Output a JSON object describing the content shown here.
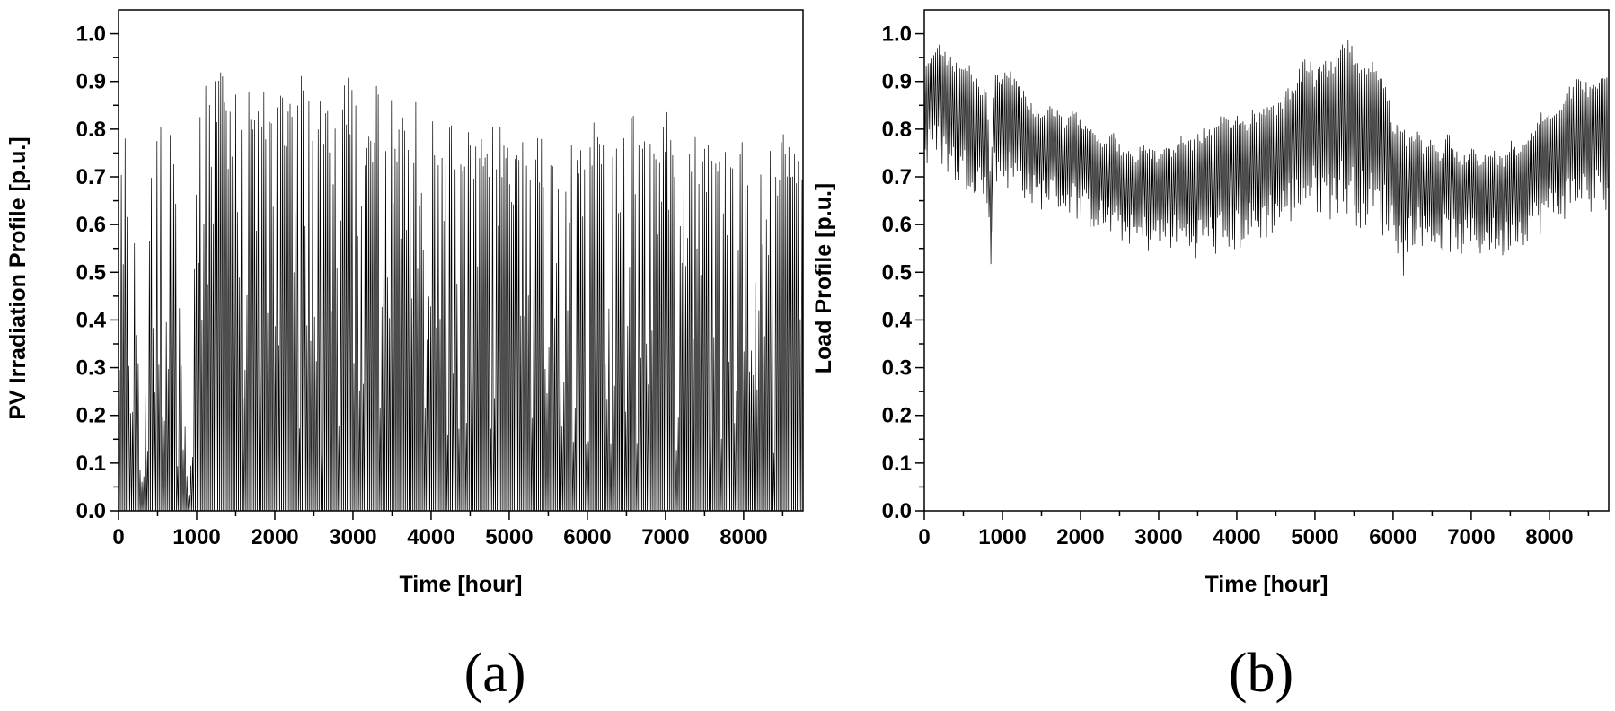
{
  "chart_data": [
    {
      "type": "line",
      "panel_label": "(a)",
      "xlabel": "Time [hour]",
      "ylabel": "PV Irradiation Profile [p.u.]",
      "xlim": [
        0,
        8760
      ],
      "ylim": [
        0,
        1.05
      ],
      "xticks": [
        0,
        1000,
        2000,
        3000,
        4000,
        5000,
        6000,
        7000,
        8000
      ],
      "yticks": [
        0.0,
        0.1,
        0.2,
        0.3,
        0.4,
        0.5,
        0.6,
        0.7,
        0.8,
        0.9,
        1.0
      ],
      "grid": false,
      "series_description": "hourly PV irradiation over one year; zero each night, daily peak envelope shown as points",
      "series": [
        {
          "x": [
            0,
            100,
            200,
            300,
            400,
            500,
            600,
            700,
            800,
            900,
            1000,
            1100,
            1200,
            1300,
            1400,
            1500,
            1600,
            1700,
            1800,
            1900,
            2000,
            2100,
            2200,
            2300,
            2400,
            2500,
            2600,
            2700,
            2800,
            2900,
            3000,
            3100,
            3200,
            3300,
            3400,
            3500,
            3600,
            3700,
            3800,
            3900,
            4000,
            4100,
            4200,
            4300,
            4400,
            4500,
            4600,
            4700,
            4800,
            4900,
            5000,
            5100,
            5200,
            5300,
            5400,
            5500,
            5600,
            5700,
            5800,
            5900,
            6000,
            6100,
            6200,
            6300,
            6400,
            6500,
            6600,
            6700,
            6800,
            6900,
            7000,
            7100,
            7200,
            7300,
            7400,
            7500,
            7600,
            7700,
            7800,
            7900,
            8000,
            8100,
            8200,
            8300,
            8400,
            8500,
            8600,
            8700
          ],
          "values": [
            0.78,
            0.8,
            0.56,
            0.0,
            0.75,
            0.8,
            0.88,
            0.85,
            0.3,
            0.0,
            0.85,
            0.92,
            0.9,
            0.94,
            0.93,
            0.94,
            0.96,
            0.89,
            0.85,
            0.94,
            0.93,
            0.86,
            0.88,
            1.0,
            0.95,
            0.9,
            0.85,
            0.84,
            0.82,
            0.94,
            0.88,
            0.83,
            0.85,
            0.93,
            0.87,
            0.86,
            0.87,
            0.85,
            0.86,
            0.86,
            0.86,
            0.84,
            0.82,
            0.83,
            0.81,
            0.8,
            0.8,
            0.82,
            0.81,
            0.81,
            0.8,
            0.8,
            0.79,
            0.8,
            0.8,
            0.79,
            0.8,
            0.78,
            0.8,
            0.82,
            0.86,
            0.8,
            0.79,
            0.83,
            0.8,
            0.84,
            0.84,
            0.87,
            0.81,
            0.84,
            0.84,
            0.8,
            0.81,
            0.83,
            0.78,
            0.8,
            0.78,
            0.79,
            0.8,
            0.77,
            0.78,
            0.79,
            0.83,
            0.77,
            0.76,
            0.81,
            0.79,
            0.78
          ]
        }
      ]
    },
    {
      "type": "line",
      "panel_label": "(b)",
      "xlabel": "Time [hour]",
      "ylabel": "Load Profile [p.u.]",
      "xlim": [
        0,
        8760
      ],
      "ylim": [
        0,
        1.05
      ],
      "xticks": [
        0,
        1000,
        2000,
        3000,
        4000,
        5000,
        6000,
        7000,
        8000
      ],
      "yticks": [
        0.0,
        0.1,
        0.2,
        0.3,
        0.4,
        0.5,
        0.6,
        0.7,
        0.8,
        0.9,
        1.0
      ],
      "grid": false,
      "series_description": "hourly load over one year, upper and lower envelopes of the daily oscillation",
      "series": [
        {
          "x": [
            0,
            100,
            200,
            300,
            400,
            500,
            600,
            700,
            800,
            850,
            900,
            1000,
            1100,
            1200,
            1300,
            1400,
            1500,
            1600,
            1700,
            1800,
            1900,
            2000,
            2100,
            2200,
            2300,
            2400,
            2500,
            2600,
            2700,
            2800,
            2900,
            3000,
            3100,
            3200,
            3300,
            3400,
            3500,
            3600,
            3700,
            3800,
            3900,
            4000,
            4100,
            4200,
            4300,
            4400,
            4500,
            4600,
            4700,
            4800,
            4900,
            5000,
            5100,
            5200,
            5300,
            5400,
            5500,
            5600,
            5700,
            5800,
            5900,
            6000,
            6100,
            6150,
            6200,
            6300,
            6400,
            6500,
            6600,
            6700,
            6800,
            6900,
            7000,
            7100,
            7200,
            7300,
            7400,
            7500,
            7600,
            7700,
            7800,
            7900,
            8000,
            8100,
            8200,
            8300,
            8400,
            8500,
            8600,
            8700
          ],
          "upper": [
            0.96,
            0.95,
            0.98,
            0.96,
            0.94,
            0.95,
            0.93,
            0.9,
            0.88,
            0.7,
            0.93,
            0.92,
            0.93,
            0.9,
            0.88,
            0.85,
            0.84,
            0.85,
            0.84,
            0.82,
            0.84,
            0.83,
            0.82,
            0.8,
            0.78,
            0.8,
            0.77,
            0.76,
            0.74,
            0.78,
            0.76,
            0.75,
            0.78,
            0.76,
            0.8,
            0.78,
            0.79,
            0.81,
            0.8,
            0.83,
            0.82,
            0.84,
            0.82,
            0.85,
            0.84,
            0.87,
            0.86,
            0.88,
            0.9,
            0.93,
            0.96,
            0.92,
            0.94,
            0.95,
            0.97,
            1.0,
            0.97,
            0.95,
            0.96,
            0.93,
            0.92,
            0.82,
            0.8,
            0.8,
            0.78,
            0.8,
            0.77,
            0.78,
            0.75,
            0.8,
            0.76,
            0.75,
            0.77,
            0.74,
            0.75,
            0.76,
            0.74,
            0.78,
            0.77,
            0.79,
            0.81,
            0.84,
            0.84,
            0.86,
            0.88,
            0.9,
            0.91,
            0.9,
            0.92,
            0.93
          ],
          "lower": [
            0.7,
            0.74,
            0.73,
            0.7,
            0.68,
            0.67,
            0.67,
            0.66,
            0.63,
            0.49,
            0.67,
            0.68,
            0.67,
            0.66,
            0.65,
            0.63,
            0.63,
            0.64,
            0.63,
            0.62,
            0.62,
            0.6,
            0.59,
            0.59,
            0.58,
            0.57,
            0.56,
            0.56,
            0.55,
            0.54,
            0.54,
            0.55,
            0.54,
            0.55,
            0.54,
            0.53,
            0.53,
            0.54,
            0.53,
            0.53,
            0.54,
            0.54,
            0.55,
            0.55,
            0.56,
            0.57,
            0.58,
            0.59,
            0.6,
            0.61,
            0.62,
            0.62,
            0.61,
            0.61,
            0.62,
            0.61,
            0.6,
            0.59,
            0.59,
            0.58,
            0.57,
            0.57,
            0.51,
            0.48,
            0.55,
            0.56,
            0.55,
            0.55,
            0.54,
            0.54,
            0.54,
            0.53,
            0.54,
            0.53,
            0.54,
            0.54,
            0.52,
            0.55,
            0.55,
            0.56,
            0.57,
            0.58,
            0.6,
            0.6,
            0.61,
            0.62,
            0.63,
            0.62,
            0.62,
            0.6
          ]
        }
      ]
    }
  ]
}
